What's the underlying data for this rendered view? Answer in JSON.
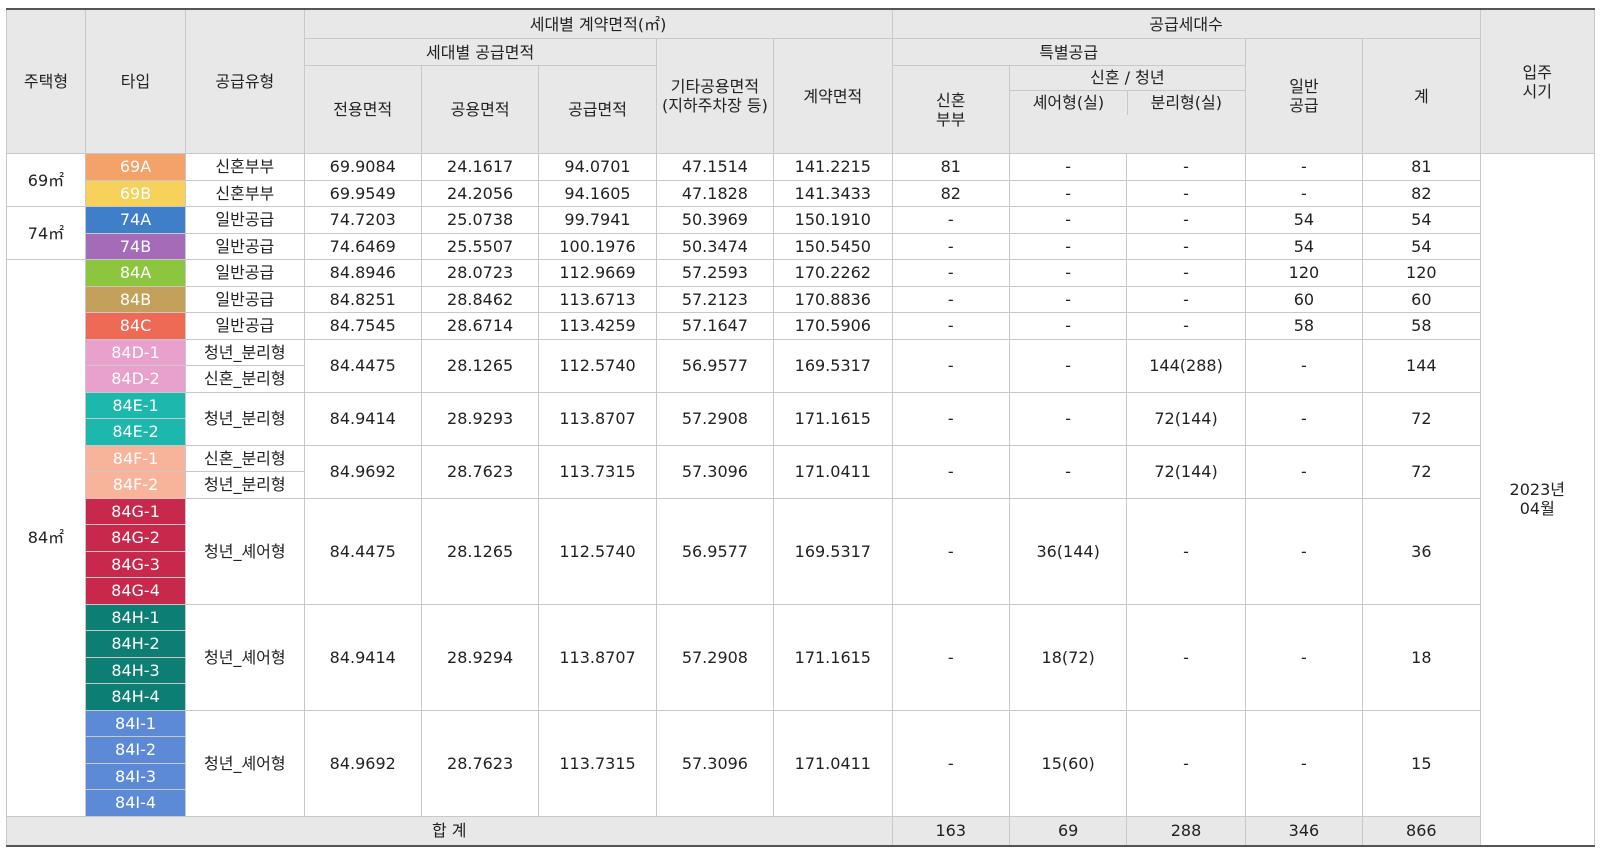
{
  "headers": {
    "housing_type": "주택형",
    "type": "타입",
    "supply_type": "공급유형",
    "contract_area": "세대별 계약면적(㎡)",
    "unit_supply_area": "세대별 공급면적",
    "exclusive_area": "전용면적",
    "common_area": "공용면적",
    "supply_area": "공급면적",
    "other_common_area": "기타공용면적\n(지하주차장 등)",
    "contract_area_col": "계약면적",
    "supply_households": "공급세대수",
    "special_supply": "특별공급",
    "newlywed_couple": "신혼\n부부",
    "newlywed_youth": "신혼 / 청년",
    "share_type": "셰어형(실)",
    "separate_type": "분리형(실)",
    "general_supply": "일반\n공급",
    "total_col": "계",
    "move_in": "입주\n시기"
  },
  "groups": {
    "g69": "69㎡",
    "g74": "74㎡",
    "g84": "84㎡"
  },
  "rows": [
    {
      "type": "69A",
      "color": "#f4a26a",
      "supply": "신혼부부",
      "excl": "69.9084",
      "common": "24.1617",
      "supplyArea": "94.0701",
      "other": "47.1514",
      "contract": "141.2215",
      "nw": "81",
      "share": "-",
      "sep": "-",
      "gen": "-",
      "total": "81"
    },
    {
      "type": "69B",
      "color": "#f7d15a",
      "supply": "신혼부부",
      "excl": "69.9549",
      "common": "24.2056",
      "supplyArea": "94.1605",
      "other": "47.1828",
      "contract": "141.3433",
      "nw": "82",
      "share": "-",
      "sep": "-",
      "gen": "-",
      "total": "82"
    },
    {
      "type": "74A",
      "color": "#3f7fc9",
      "supply": "일반공급",
      "excl": "74.7203",
      "common": "25.0738",
      "supplyArea": "99.7941",
      "other": "50.3969",
      "contract": "150.1910",
      "nw": "-",
      "share": "-",
      "sep": "-",
      "gen": "54",
      "total": "54"
    },
    {
      "type": "74B",
      "color": "#a36bb8",
      "supply": "일반공급",
      "excl": "74.6469",
      "common": "25.5507",
      "supplyArea": "100.1976",
      "other": "50.3474",
      "contract": "150.5450",
      "nw": "-",
      "share": "-",
      "sep": "-",
      "gen": "54",
      "total": "54"
    },
    {
      "type": "84A",
      "color": "#8cc63f",
      "supply": "일반공급",
      "excl": "84.8946",
      "common": "28.0723",
      "supplyArea": "112.9669",
      "other": "57.2593",
      "contract": "170.2262",
      "nw": "-",
      "share": "-",
      "sep": "-",
      "gen": "120",
      "total": "120"
    },
    {
      "type": "84B",
      "color": "#c4a15a",
      "supply": "일반공급",
      "excl": "84.8251",
      "common": "28.8462",
      "supplyArea": "113.6713",
      "other": "57.2123",
      "contract": "170.8836",
      "nw": "-",
      "share": "-",
      "sep": "-",
      "gen": "60",
      "total": "60"
    },
    {
      "type": "84C",
      "color": "#ee6a55",
      "supply": "일반공급",
      "excl": "84.7545",
      "common": "28.6714",
      "supplyArea": "113.4259",
      "other": "57.1647",
      "contract": "170.5906",
      "nw": "-",
      "share": "-",
      "sep": "-",
      "gen": "58",
      "total": "58"
    }
  ],
  "merged_rows": [
    {
      "types": [
        {
          "type": "84D-1",
          "color": "#e8a0cc",
          "supply": "청년_분리형"
        },
        {
          "type": "84D-2",
          "color": "#e8a0cc",
          "supply": "신혼_분리형"
        }
      ],
      "excl": "84.4475",
      "common": "28.1265",
      "supplyArea": "112.5740",
      "other": "56.9577",
      "contract": "169.5317",
      "nw": "-",
      "share": "-",
      "sep": "144(288)",
      "gen": "-",
      "total": "144"
    },
    {
      "types": [
        {
          "type": "84E-1",
          "color": "#1cb8ae"
        },
        {
          "type": "84E-2",
          "color": "#1cb8ae"
        }
      ],
      "supply": "청년_분리형",
      "excl": "84.9414",
      "common": "28.9293",
      "supplyArea": "113.8707",
      "other": "57.2908",
      "contract": "171.1615",
      "nw": "-",
      "share": "-",
      "sep": "72(144)",
      "gen": "-",
      "total": "72"
    },
    {
      "types": [
        {
          "type": "84F-1",
          "color": "#f7b49a",
          "supply": "신혼_분리형"
        },
        {
          "type": "84F-2",
          "color": "#f7b49a",
          "supply": "청년_분리형"
        }
      ],
      "excl": "84.9692",
      "common": "28.7623",
      "supplyArea": "113.7315",
      "other": "57.3096",
      "contract": "171.0411",
      "nw": "-",
      "share": "-",
      "sep": "72(144)",
      "gen": "-",
      "total": "72"
    },
    {
      "types": [
        {
          "type": "84G-1",
          "color": "#c8284c"
        },
        {
          "type": "84G-2",
          "color": "#c8284c"
        },
        {
          "type": "84G-3",
          "color": "#c8284c"
        },
        {
          "type": "84G-4",
          "color": "#c8284c"
        }
      ],
      "supply": "청년_셰어형",
      "excl": "84.4475",
      "common": "28.1265",
      "supplyArea": "112.5740",
      "other": "56.9577",
      "contract": "169.5317",
      "nw": "-",
      "share": "36(144)",
      "sep": "-",
      "gen": "-",
      "total": "36"
    },
    {
      "types": [
        {
          "type": "84H-1",
          "color": "#0d7e74"
        },
        {
          "type": "84H-2",
          "color": "#0d7e74"
        },
        {
          "type": "84H-3",
          "color": "#0d7e74"
        },
        {
          "type": "84H-4",
          "color": "#0d7e74"
        }
      ],
      "supply": "청년_셰어형",
      "excl": "84.9414",
      "common": "28.9294",
      "supplyArea": "113.8707",
      "other": "57.2908",
      "contract": "171.1615",
      "nw": "-",
      "share": "18(72)",
      "sep": "-",
      "gen": "-",
      "total": "18"
    },
    {
      "types": [
        {
          "type": "84I-1",
          "color": "#5c8ad6"
        },
        {
          "type": "84I-2",
          "color": "#5c8ad6"
        },
        {
          "type": "84I-3",
          "color": "#5c8ad6"
        },
        {
          "type": "84I-4",
          "color": "#5c8ad6"
        }
      ],
      "supply": "청년_셰어형",
      "excl": "84.9692",
      "common": "28.7623",
      "supplyArea": "113.7315",
      "other": "57.3096",
      "contract": "171.0411",
      "nw": "-",
      "share": "15(60)",
      "sep": "-",
      "gen": "-",
      "total": "15"
    }
  ],
  "move_in_date": "2023년\n04월",
  "totals": {
    "label": "합 계",
    "nw": "163",
    "share": "69",
    "sep": "288",
    "gen": "346",
    "total": "866"
  }
}
